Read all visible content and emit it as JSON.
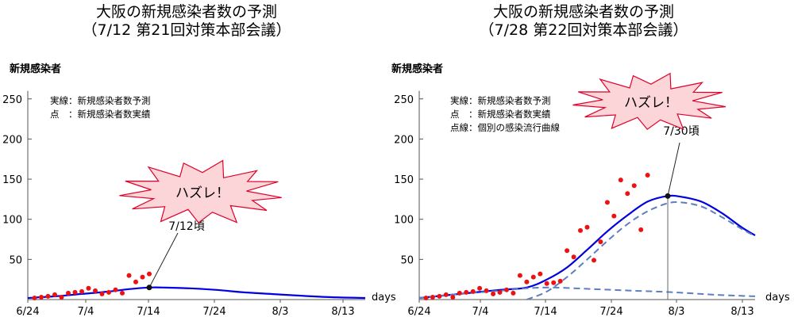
{
  "chart_data": [
    {
      "type": "line",
      "title": "大阪の新規感染者数の予測",
      "subtitle": "（7/12 第21回対策本部会議）",
      "ylabel": "新規感染者",
      "xlabel": "days",
      "ylim": [
        0,
        260
      ],
      "yticks": [
        50,
        100,
        150,
        200,
        250
      ],
      "xticks": [
        "6/24",
        "7/4",
        "7/14",
        "7/24",
        "8/3",
        "8/13"
      ],
      "x_start": "6/24",
      "x_end": "8/13",
      "legend": [
        "実線：新規感染者数予測",
        "点　：新規感染者数実績"
      ],
      "series": [
        {
          "name": "新規感染者数予測",
          "style": "solid",
          "color": "#0000e0",
          "points": [
            [
              "6/24",
              2
            ],
            [
              "6/28",
              4
            ],
            [
              "7/2",
              7
            ],
            [
              "7/6",
              10
            ],
            [
              "7/9",
              13
            ],
            [
              "7/12",
              15
            ],
            [
              "7/14",
              15
            ],
            [
              "7/18",
              14
            ],
            [
              "7/22",
              12
            ],
            [
              "7/26",
              9
            ],
            [
              "7/30",
              7
            ],
            [
              "8/3",
              5
            ],
            [
              "8/8",
              3
            ],
            [
              "8/13",
              2
            ]
          ]
        },
        {
          "name": "新規感染者数実績",
          "style": "points",
          "color": "#ee1111",
          "points": [
            [
              "6/25",
              2
            ],
            [
              "6/26",
              3
            ],
            [
              "6/27",
              4
            ],
            [
              "6/28",
              6
            ],
            [
              "6/29",
              3
            ],
            [
              "6/30",
              8
            ],
            [
              "7/1",
              9
            ],
            [
              "7/2",
              10
            ],
            [
              "7/3",
              14
            ],
            [
              "7/4",
              11
            ],
            [
              "7/5",
              7
            ],
            [
              "7/6",
              9
            ],
            [
              "7/7",
              12
            ],
            [
              "7/8",
              8
            ],
            [
              "7/9",
              30
            ],
            [
              "7/10",
              22
            ],
            [
              "7/11",
              28
            ],
            [
              "7/12",
              32
            ]
          ]
        }
      ],
      "annotation": {
        "burst": "ハズレ！",
        "label": "7/12頃",
        "x": "7/12",
        "y": 15
      }
    },
    {
      "type": "line",
      "title": "大阪の新規感染者数の予測",
      "subtitle": "（7/28 第22回対策本部会議）",
      "ylabel": "新規感染者",
      "xlabel": "days",
      "ylim": [
        0,
        260
      ],
      "yticks": [
        50,
        100,
        150,
        200,
        250
      ],
      "xticks": [
        "6/24",
        "7/4",
        "7/14",
        "7/24",
        "8/3",
        "8/13"
      ],
      "x_start": "6/24",
      "x_end": "8/13",
      "legend": [
        "実線：新規感染者数予測",
        "点　：新規感染者数実績",
        "点線：個別の感染流行曲線"
      ],
      "series": [
        {
          "name": "新規感染者数予測",
          "style": "solid",
          "color": "#0000e0",
          "points": [
            [
              "6/24",
              2
            ],
            [
              "6/30",
              7
            ],
            [
              "7/6",
              12
            ],
            [
              "7/10",
              15
            ],
            [
              "7/13",
              25
            ],
            [
              "7/16",
              40
            ],
            [
              "7/19",
              62
            ],
            [
              "7/22",
              85
            ],
            [
              "7/25",
              105
            ],
            [
              "7/28",
              122
            ],
            [
              "7/31",
              129
            ],
            [
              "8/2",
              128
            ],
            [
              "8/5",
              122
            ],
            [
              "8/8",
              108
            ],
            [
              "8/11",
              90
            ],
            [
              "8/13",
              80
            ]
          ]
        },
        {
          "name": "個別の感染流行曲線 1",
          "style": "dashed",
          "color": "#5b7fbf",
          "points": [
            [
              "6/24",
              2
            ],
            [
              "6/30",
              7
            ],
            [
              "7/6",
              11
            ],
            [
              "7/10",
              14
            ],
            [
              "7/14",
              15
            ],
            [
              "7/20",
              13
            ],
            [
              "7/26",
              11
            ],
            [
              "8/1",
              9
            ],
            [
              "8/7",
              6
            ],
            [
              "8/13",
              4
            ]
          ]
        },
        {
          "name": "個別の感染流行曲線 2",
          "style": "dashed",
          "color": "#5b7fbf",
          "points": [
            [
              "7/10",
              0
            ],
            [
              "7/13",
              10
            ],
            [
              "7/16",
              28
            ],
            [
              "7/19",
              50
            ],
            [
              "7/22",
              73
            ],
            [
              "7/25",
              94
            ],
            [
              "7/28",
              110
            ],
            [
              "7/31",
              120
            ],
            [
              "8/2",
              121
            ],
            [
              "8/5",
              116
            ],
            [
              "8/8",
              103
            ],
            [
              "8/11",
              88
            ],
            [
              "8/13",
              79
            ]
          ]
        },
        {
          "name": "新規感染者数実績",
          "style": "points",
          "color": "#ee1111",
          "points": [
            [
              "6/25",
              2
            ],
            [
              "6/26",
              3
            ],
            [
              "6/27",
              4
            ],
            [
              "6/28",
              6
            ],
            [
              "6/29",
              3
            ],
            [
              "6/30",
              8
            ],
            [
              "7/1",
              9
            ],
            [
              "7/2",
              10
            ],
            [
              "7/3",
              14
            ],
            [
              "7/4",
              11
            ],
            [
              "7/5",
              7
            ],
            [
              "7/6",
              9
            ],
            [
              "7/7",
              12
            ],
            [
              "7/8",
              8
            ],
            [
              "7/9",
              30
            ],
            [
              "7/10",
              22
            ],
            [
              "7/11",
              28
            ],
            [
              "7/12",
              32
            ],
            [
              "7/13",
              20
            ],
            [
              "7/14",
              21
            ],
            [
              "7/15",
              23
            ],
            [
              "7/16",
              61
            ],
            [
              "7/17",
              53
            ],
            [
              "7/18",
              86
            ],
            [
              "7/19",
              90
            ],
            [
              "7/20",
              49
            ],
            [
              "7/21",
              72
            ],
            [
              "7/22",
              121
            ],
            [
              "7/23",
              104
            ],
            [
              "7/24",
              149
            ],
            [
              "7/25",
              132
            ],
            [
              "7/26",
              142
            ],
            [
              "7/27",
              87
            ],
            [
              "7/28",
              155
            ]
          ]
        }
      ],
      "annotation": {
        "burst": "ハズレ！",
        "label": "7/30頃",
        "x": "7/31",
        "y": 129
      }
    }
  ]
}
